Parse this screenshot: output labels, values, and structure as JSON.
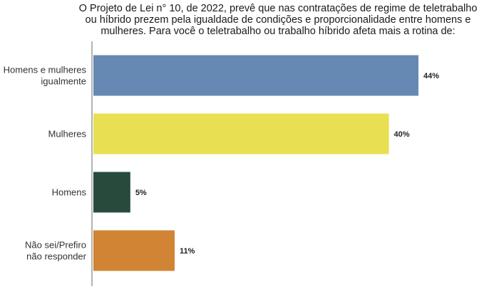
{
  "chart_data": {
    "type": "bar",
    "orientation": "horizontal",
    "title_lines": [
      "O Projeto de Lei n° 10, de 2022, prevê que nas contratações de regime de teletrabalho",
      "ou híbrido prezem pela igualdade de condições e proporcionalidade entre homens e",
      "mulheres. Para você o teletrabalho ou trabalho híbrido afeta mais a rotina de:"
    ],
    "categories": [
      [
        "Homens e mulheres",
        "igualmente"
      ],
      [
        "Mulheres"
      ],
      [
        "Homens"
      ],
      [
        "Não sei/Prefiro",
        "não responder"
      ]
    ],
    "values": [
      44,
      40,
      5,
      11
    ],
    "value_labels": [
      "44%",
      "40%",
      "5%",
      "11%"
    ],
    "colors": [
      "#6689b4",
      "#e8e052",
      "#284a3d",
      "#d08434"
    ],
    "xlim": [
      0,
      55
    ],
    "grid": false,
    "legend": "none"
  }
}
